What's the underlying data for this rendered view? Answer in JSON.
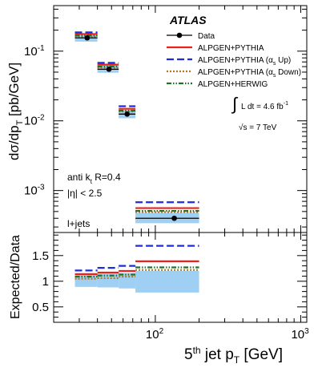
{
  "chart_data": {
    "type": "line",
    "title": "",
    "experiment": "ATLAS",
    "xlabel_main": "5",
    "xlabel_sup": "th",
    "xlabel_rest": " jet p",
    "xlabel_sub": "T",
    "xlabel_unit": "[GeV]",
    "x_scale": "log",
    "xlim": [
      20,
      1100
    ],
    "x_ticks": [
      {
        "value": 100,
        "base": "10",
        "exp": "2"
      },
      {
        "value": 1000,
        "base": "10",
        "exp": "3"
      }
    ],
    "top_panel": {
      "ylabel_main": "dσ/dp",
      "ylabel_sub": "T",
      "ylabel_unit": "[pb/GeV]",
      "y_scale": "log",
      "ylim": [
        0.00025,
        0.45
      ],
      "y_ticks": [
        {
          "value": 0.1,
          "base": "10",
          "exp": "-1"
        },
        {
          "value": 0.01,
          "base": "10",
          "exp": "-2"
        },
        {
          "value": 0.001,
          "base": "10",
          "exp": "-3"
        }
      ],
      "bins": [
        [
          28,
          40
        ],
        [
          40,
          56
        ],
        [
          56,
          73
        ],
        [
          73,
          200
        ]
      ],
      "data_x": [
        34,
        48,
        64,
        135
      ],
      "data_y": [
        0.155,
        0.055,
        0.0125,
        0.0004
      ],
      "band_low": [
        0.137,
        0.049,
        0.0109,
        0.00034
      ],
      "band_high": [
        0.175,
        0.063,
        0.0143,
        0.00048
      ],
      "series": [
        {
          "name": "ALPGEN+PYTHIA",
          "color": "#e8221c",
          "dash": "",
          "width": 2.2,
          "values": [
            0.176,
            0.064,
            0.0149,
            0.00056
          ]
        },
        {
          "name": "ALPGEN+PYTHIA (α",
          "name_sub": "s",
          "name_tail": " Up)",
          "color": "#1b2ed9",
          "dash": "9,4",
          "width": 2.2,
          "values": [
            0.186,
            0.068,
            0.0162,
            0.00068
          ]
        },
        {
          "name": "ALPGEN+PYTHIA (α",
          "name_sub": "s",
          "name_tail": " Down)",
          "color": "#b07828",
          "dash": "2,2",
          "width": 2.2,
          "values": [
            0.162,
            0.058,
            0.0136,
            0.00049
          ]
        },
        {
          "name": "ALPGEN+HERWIG",
          "color": "#20702a",
          "dash": "6,2,1.5,2,1.5,2",
          "width": 2.2,
          "values": [
            0.167,
            0.06,
            0.014,
            0.00051
          ]
        }
      ],
      "legend_data_label": "Data",
      "legend_placement": "top-right",
      "lumi_int": "∫",
      "lumi_text": "L dt = 4.6 fb",
      "lumi_exp": "-1",
      "energy_prefix": "√s",
      "energy_text": " = 7 TeV",
      "jet_algo_line1": "anti k",
      "jet_algo_sub": "t",
      "jet_algo_rest": " R=0.4",
      "eta_cut": "|η| < 2.5",
      "channel": "l+jets"
    },
    "bottom_panel": {
      "ylabel": "Expected/Data",
      "ylim": [
        0.2,
        1.95
      ],
      "y_ticks": [
        {
          "value": 0.5,
          "label": "0.5"
        },
        {
          "value": 1,
          "label": "1"
        },
        {
          "value": 1.5,
          "label": "1.5"
        }
      ],
      "band_low": [
        0.89,
        0.88,
        0.86,
        0.78
      ],
      "band_high": [
        1.13,
        1.15,
        1.16,
        1.2
      ],
      "ratios": [
        [
          1.14,
          1.17,
          1.2,
          1.39
        ],
        [
          1.21,
          1.26,
          1.3,
          1.69
        ],
        [
          1.05,
          1.06,
          1.09,
          1.22
        ],
        [
          1.09,
          1.11,
          1.13,
          1.27
        ]
      ],
      "data_ratio": 1.0
    },
    "grid": false
  }
}
